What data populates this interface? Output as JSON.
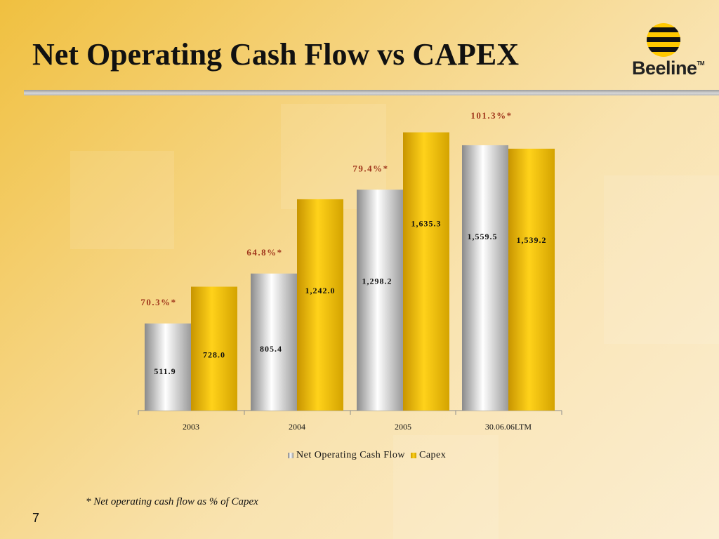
{
  "slide": {
    "title": "Net Operating Cash Flow vs CAPEX",
    "footnote": "* Net operating cash flow as % of Capex",
    "page_number": "7"
  },
  "logo": {
    "text": "Beeline",
    "trademark": "TM"
  },
  "colors": {
    "series_a": "#d9d9d9",
    "series_b": "#f5c400",
    "ratio_label": "#a0361c"
  },
  "chart_data": {
    "type": "bar",
    "categories": [
      "2003",
      "2004",
      "2005",
      "30.06.06LTM"
    ],
    "series": [
      {
        "name": "Net Operating Cash Flow",
        "values": [
          511.9,
          805.4,
          1298.2,
          1559.5
        ],
        "labels": [
          "511.9",
          "805.4",
          "1,298.2",
          "1,559.5"
        ]
      },
      {
        "name": "Capex",
        "values": [
          728.0,
          1242.0,
          1635.3,
          1539.2
        ],
        "labels": [
          "728.0",
          "1,242.0",
          "1,635.3",
          "1,539.2"
        ]
      }
    ],
    "annotations": [
      "70.3%*",
      "64.8%*",
      "79.4%*",
      "101.3%*"
    ],
    "title": "",
    "xlabel": "",
    "ylabel": "",
    "ylim": [
      0,
      1650
    ],
    "grid": false,
    "legend": "bottom"
  }
}
